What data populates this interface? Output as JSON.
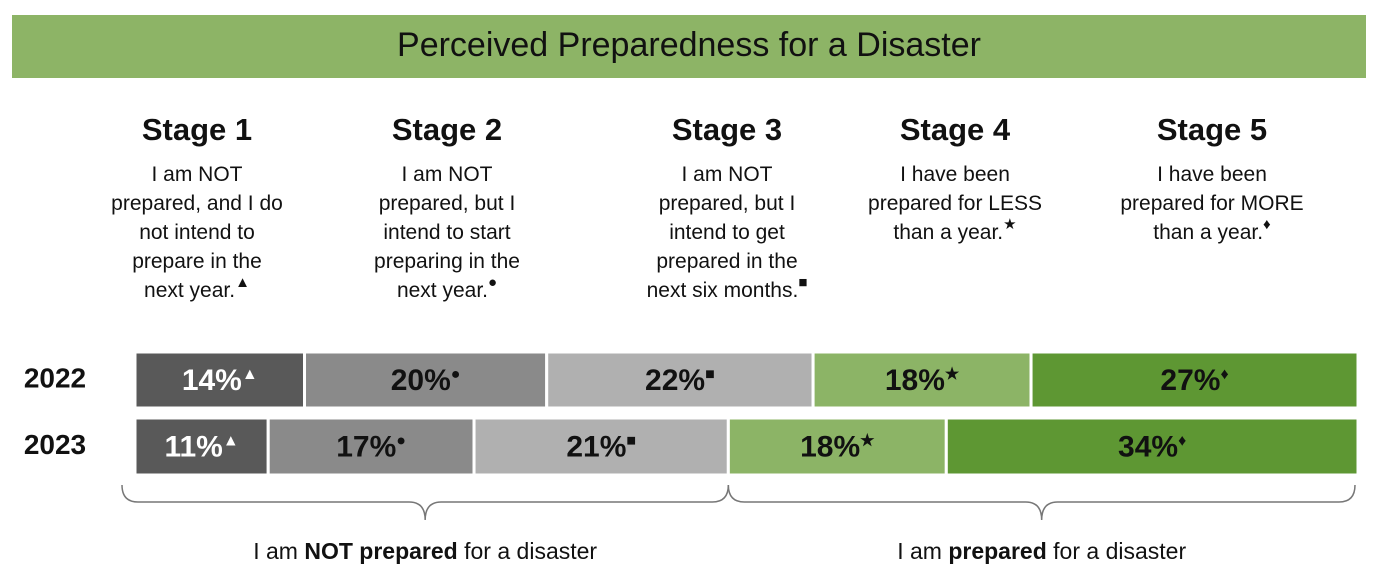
{
  "chart_data": {
    "type": "stacked-bar",
    "title": "Perceived Preparedness for a Disaster",
    "categories": [
      "2022",
      "2023"
    ],
    "series": [
      {
        "name": "Stage 1",
        "symbol": "▲",
        "color": "#595959",
        "description": [
          "I am NOT",
          "prepared, and I do",
          "not intend to",
          "prepare in the",
          "next year."
        ],
        "values": [
          14,
          11
        ],
        "value_labels": [
          "14%",
          "11%"
        ]
      },
      {
        "name": "Stage 2",
        "symbol": "●",
        "color": "#8a8a8a",
        "description": [
          "I am NOT",
          "prepared, but I",
          "intend to start",
          "preparing in the",
          "next year."
        ],
        "values": [
          20,
          17
        ],
        "value_labels": [
          "20%",
          "17%"
        ]
      },
      {
        "name": "Stage 3",
        "symbol": "■",
        "color": "#b0b0b0",
        "description": [
          "I am NOT",
          "prepared, but I",
          "intend to get",
          "prepared in the",
          "next six months."
        ],
        "values": [
          22,
          21
        ],
        "value_labels": [
          "22%",
          "21%"
        ]
      },
      {
        "name": "Stage 4",
        "symbol": "★",
        "color": "#8cb466",
        "description": [
          "I have been",
          "prepared for LESS",
          "than a year."
        ],
        "values": [
          18,
          18
        ],
        "value_labels": [
          "18%",
          "18%"
        ]
      },
      {
        "name": "Stage 5",
        "symbol": "♦",
        "color": "#5e9733",
        "description": [
          "I have been",
          "prepared for MORE",
          "than a year."
        ],
        "values": [
          27,
          34
        ],
        "value_labels": [
          "27%",
          "34%"
        ]
      }
    ],
    "annotations": [
      {
        "parts": [
          "I am ",
          "NOT prepared",
          " for a disaster"
        ]
      },
      {
        "parts": [
          "I am ",
          "prepared",
          " for a disaster"
        ]
      }
    ]
  }
}
